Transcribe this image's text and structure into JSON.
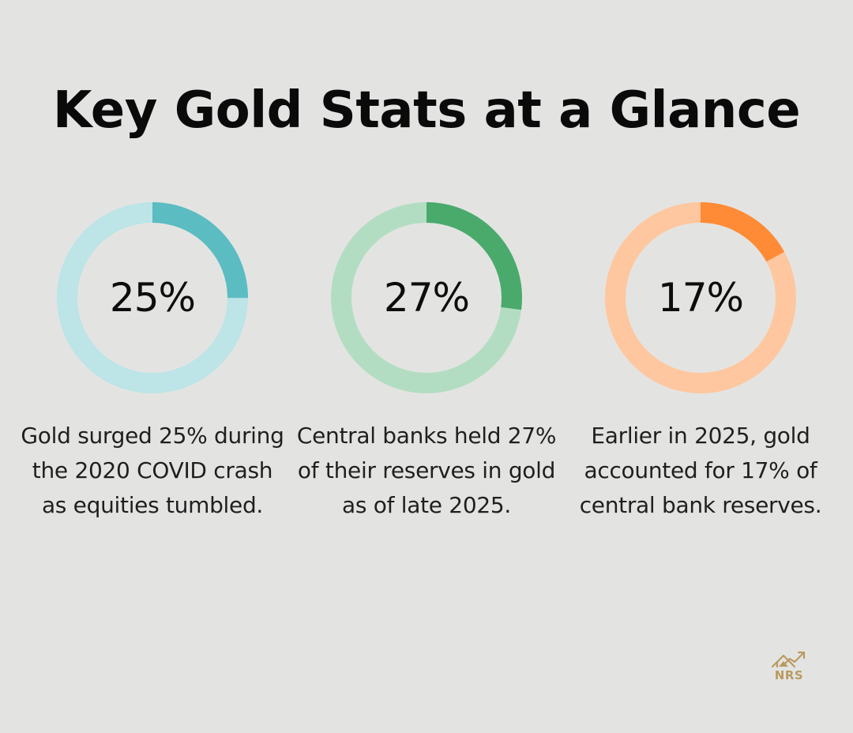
{
  "title": "Key Gold Stats at a Glance",
  "chart_data": [
    {
      "type": "pie",
      "value": 25,
      "label": "25%",
      "description": "Gold surged 25% during the 2020 COVID crash as equities tumbled.",
      "colors": {
        "arc": "#5bbcc2",
        "track": "#bde4e6"
      }
    },
    {
      "type": "pie",
      "value": 27,
      "label": "27%",
      "description": "Central banks held 27% of their reserves in gold as of late 2025.",
      "colors": {
        "arc": "#4aaa6c",
        "track": "#b3ddc2"
      }
    },
    {
      "type": "pie",
      "value": 17,
      "label": "17%",
      "description": "Earlier in 2025, gold accounted for 17% of central bank reserves.",
      "colors": {
        "arc": "#ff8b37",
        "track": "#ffc79f"
      }
    }
  ],
  "logo": {
    "text": "NRS",
    "icon": "house-chart-icon",
    "color": "#b99a62"
  }
}
